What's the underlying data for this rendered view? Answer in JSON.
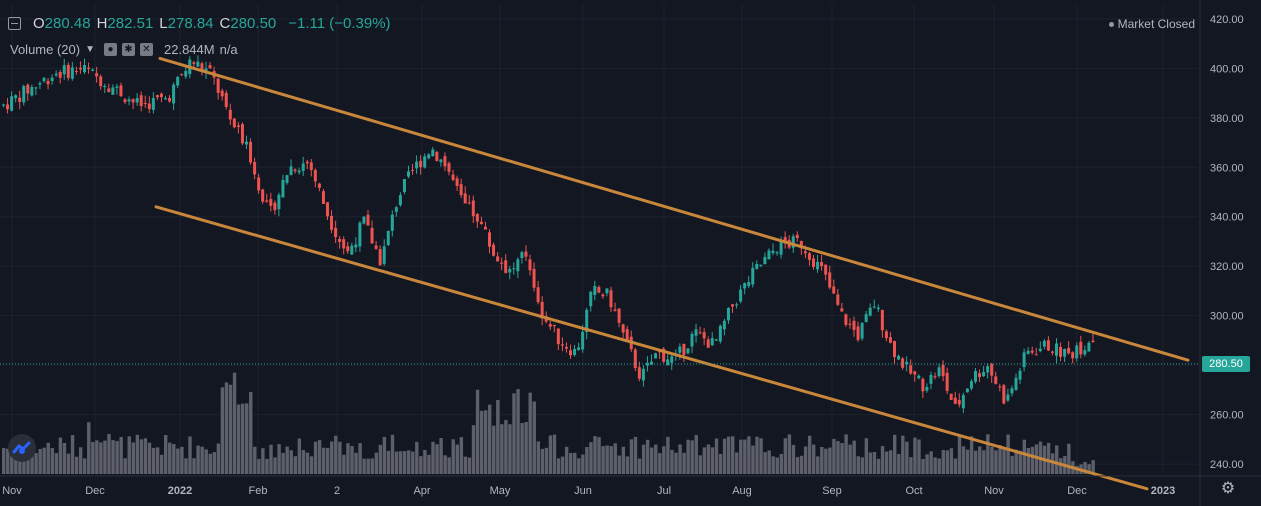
{
  "legend": {
    "open_label": "O",
    "open": "280.48",
    "high_label": "H",
    "high": "282.51",
    "low_label": "L",
    "low": "278.84",
    "close_label": "C",
    "close": "280.50",
    "change": "−1.11 (−0.39%)"
  },
  "volume_legend": {
    "label": "Volume (20)",
    "value": "22.844M",
    "ma": "n/a",
    "icons": [
      "eye-icon",
      "settings-icon",
      "close-icon"
    ]
  },
  "status": "Market Closed",
  "last_price": "280.50",
  "colors": {
    "background": "#131722",
    "up": "#26a69a",
    "down": "#ef5350",
    "channel": "#c8873a",
    "volume": "#5d606b",
    "grid": "#1e222d",
    "axis_text": "#b2b5be"
  },
  "chart_data": {
    "type": "candlestick",
    "y_axis": {
      "ticks": [
        "420.00",
        "400.00",
        "380.00",
        "360.00",
        "340.00",
        "320.00",
        "300.00",
        "280.00",
        "260.00",
        "240.00"
      ],
      "ylim": [
        236,
        426
      ]
    },
    "x_axis": {
      "ticks": [
        "Nov",
        "Dec",
        "2022",
        "Feb",
        "2",
        "Apr",
        "May",
        "Jun",
        "Jul",
        "Aug",
        "Sep",
        "Oct",
        "Nov",
        "Dec",
        "2023"
      ]
    },
    "anchors": [
      {
        "month": "Nov 2021",
        "close": 385
      },
      {
        "month": "Nov 2021",
        "close": 398
      },
      {
        "month": "Nov 2021",
        "close": 400
      },
      {
        "month": "Dec 2021",
        "close": 393
      },
      {
        "month": "Dec 2021",
        "close": 385
      },
      {
        "month": "Dec 2021",
        "close": 388
      },
      {
        "month": "Jan 2022",
        "close": 403
      },
      {
        "month": "Jan 2022",
        "close": 398
      },
      {
        "month": "Jan 2022",
        "close": 380
      },
      {
        "month": "Jan 2022",
        "close": 365
      },
      {
        "month": "Feb 2022",
        "close": 340
      },
      {
        "month": "Feb 2022",
        "close": 360
      },
      {
        "month": "Feb 2022",
        "close": 362
      },
      {
        "month": "Feb 2022",
        "close": 340
      },
      {
        "month": "Mar 2022",
        "close": 325
      },
      {
        "month": "Mar 2022",
        "close": 338
      },
      {
        "month": "Mar 2022",
        "close": 322
      },
      {
        "month": "Mar 2022",
        "close": 348
      },
      {
        "month": "Mar 2022",
        "close": 360
      },
      {
        "month": "Apr 2022",
        "close": 368
      },
      {
        "month": "Apr 2022",
        "close": 360
      },
      {
        "month": "Apr 2022",
        "close": 345
      },
      {
        "month": "Apr 2022",
        "close": 340
      },
      {
        "month": "Apr 2022",
        "close": 325
      },
      {
        "month": "May 2022",
        "close": 318
      },
      {
        "month": "May 2022",
        "close": 325
      },
      {
        "month": "May 2022",
        "close": 300
      },
      {
        "month": "May 2022",
        "close": 290
      },
      {
        "month": "May 2022",
        "close": 285
      },
      {
        "month": "Jun 2022",
        "close": 310
      },
      {
        "month": "Jun 2022",
        "close": 308
      },
      {
        "month": "Jun 2022",
        "close": 290
      },
      {
        "month": "Jun 2022",
        "close": 275
      },
      {
        "month": "Jun 2022",
        "close": 285
      },
      {
        "month": "Jul 2022",
        "close": 282
      },
      {
        "month": "Jul 2022",
        "close": 293
      },
      {
        "month": "Jul 2022",
        "close": 288
      },
      {
        "month": "Jul 2022",
        "close": 305
      },
      {
        "month": "Aug 2022",
        "close": 318
      },
      {
        "month": "Aug 2022",
        "close": 328
      },
      {
        "month": "Aug 2022",
        "close": 330
      },
      {
        "month": "Aug 2022",
        "close": 318
      },
      {
        "month": "Sep 2022",
        "close": 300
      },
      {
        "month": "Sep 2022",
        "close": 292
      },
      {
        "month": "Sep 2022",
        "close": 305
      },
      {
        "month": "Sep 2022",
        "close": 288
      },
      {
        "month": "Sep 2022",
        "close": 278
      },
      {
        "month": "Oct 2022",
        "close": 272
      },
      {
        "month": "Oct 2022",
        "close": 278
      },
      {
        "month": "Oct 2022",
        "close": 262
      },
      {
        "month": "Oct 2022",
        "close": 275
      },
      {
        "month": "Oct 2022",
        "close": 280
      },
      {
        "month": "Nov 2022",
        "close": 265
      },
      {
        "month": "Nov 2022",
        "close": 285
      },
      {
        "month": "Nov 2022",
        "close": 288
      },
      {
        "month": "Nov 2022",
        "close": 284
      },
      {
        "month": "Dec 2022",
        "close": 292
      },
      {
        "month": "Dec 2022",
        "close": 280.5
      }
    ],
    "channel_upper": [
      {
        "month": "Jan 2022",
        "y": 404
      },
      {
        "month": "Dec 2022",
        "y": 282
      }
    ],
    "channel_lower": [
      {
        "month": "Jan 2022",
        "y": 344
      },
      {
        "month": "Jan 2023",
        "y": 230
      }
    ]
  }
}
